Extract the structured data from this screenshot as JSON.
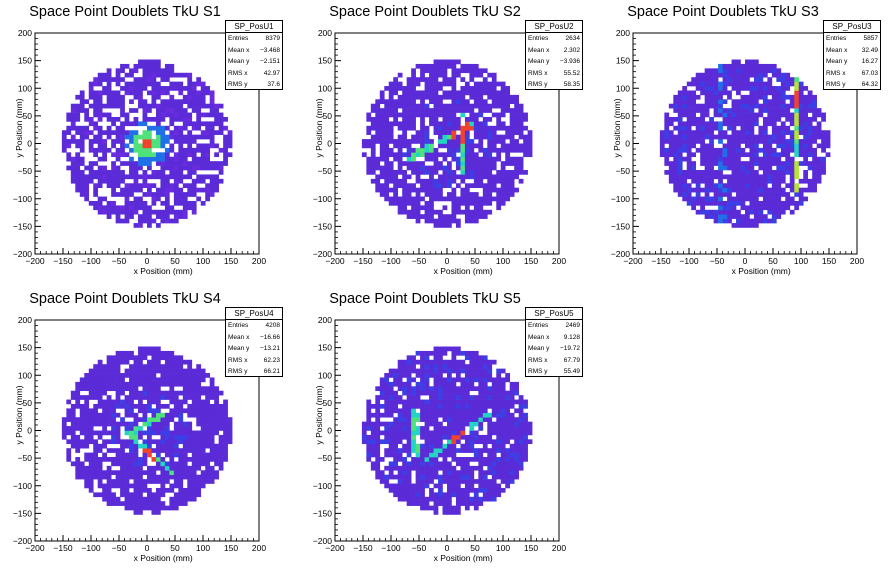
{
  "chart_data": [
    {
      "type": "heatmap",
      "title": "Space Point Doublets TkU S1",
      "xlabel": "x Position (mm)",
      "ylabel": "y Position (mm)",
      "xlim": [
        -200,
        200
      ],
      "ylim": [
        -200,
        200
      ],
      "x_ticks": [
        "−200",
        "−150",
        "−100",
        "−50",
        "0",
        "50",
        "100",
        "150",
        "200"
      ],
      "y_ticks": [
        "−200",
        "−150",
        "−100",
        "−50",
        "0",
        "50",
        "100",
        "150",
        "200"
      ],
      "stats": {
        "name": "SP_PosU1",
        "rows": [
          {
            "label": "Entries",
            "value": "8379"
          },
          {
            "label": "Mean x",
            "value": "−3.468"
          },
          {
            "label": "Mean y",
            "value": "−2.151"
          },
          {
            "label": "RMS x",
            "value": "42.97"
          },
          {
            "label": "RMS y",
            "value": "37.6"
          }
        ]
      },
      "features": {
        "spread": 0.7,
        "shape": "blob",
        "hotspot": [
          0,
          0
        ]
      }
    },
    {
      "type": "heatmap",
      "title": "Space Point Doublets TkU S2",
      "xlabel": "x Position (mm)",
      "ylabel": "y Position (mm)",
      "xlim": [
        -200,
        200
      ],
      "ylim": [
        -200,
        200
      ],
      "x_ticks": [
        "−200",
        "−150",
        "−100",
        "−50",
        "0",
        "50",
        "100",
        "150",
        "200"
      ],
      "y_ticks": [
        "−200",
        "−150",
        "−100",
        "−50",
        "0",
        "50",
        "100",
        "150",
        "200"
      ],
      "stats": {
        "name": "SP_PosU2",
        "rows": [
          {
            "label": "Entries",
            "value": "2634"
          },
          {
            "label": "Mean x",
            "value": "2.302"
          },
          {
            "label": "Mean y",
            "value": "−3.936"
          },
          {
            "label": "RMS x",
            "value": "55.52"
          },
          {
            "label": "RMS y",
            "value": "58.35"
          }
        ]
      },
      "features": {
        "spread": 0.8,
        "shape": "cross",
        "hotspot": [
          30,
          20
        ]
      }
    },
    {
      "type": "heatmap",
      "title": "Space Point Doublets TkU S3",
      "xlabel": "x Position (mm)",
      "ylabel": "y Position (mm)",
      "xlim": [
        -200,
        200
      ],
      "ylim": [
        -200,
        200
      ],
      "x_ticks": [
        "−200",
        "−150",
        "−100",
        "−50",
        "0",
        "50",
        "100",
        "150",
        "200"
      ],
      "y_ticks": [
        "−200",
        "−150",
        "−100",
        "−50",
        "0",
        "50",
        "100",
        "150",
        "200"
      ],
      "stats": {
        "name": "SP_PosU3",
        "rows": [
          {
            "label": "Entries",
            "value": "5857"
          },
          {
            "label": "Mean x",
            "value": "32.49"
          },
          {
            "label": "Mean y",
            "value": "16.27"
          },
          {
            "label": "RMS x",
            "value": "67.03"
          },
          {
            "label": "RMS y",
            "value": "64.32"
          }
        ]
      },
      "features": {
        "spread": 0.85,
        "shape": "vline",
        "hotspot": [
          90,
          80
        ]
      }
    },
    {
      "type": "heatmap",
      "title": "Space Point Doublets TkU S4",
      "xlabel": "x Position (mm)",
      "ylabel": "y Position (mm)",
      "xlim": [
        -200,
        200
      ],
      "ylim": [
        -200,
        200
      ],
      "x_ticks": [
        "−200",
        "−150",
        "−100",
        "−50",
        "0",
        "50",
        "100",
        "150",
        "200"
      ],
      "y_ticks": [
        "−200",
        "−150",
        "−100",
        "−50",
        "0",
        "50",
        "100",
        "150",
        "200"
      ],
      "stats": {
        "name": "SP_PosU4",
        "rows": [
          {
            "label": "Entries",
            "value": "4208"
          },
          {
            "label": "Mean x",
            "value": "−16.66"
          },
          {
            "label": "Mean y",
            "value": "−13.21"
          },
          {
            "label": "RMS x",
            "value": "62.23"
          },
          {
            "label": "RMS y",
            "value": "66.21"
          }
        ]
      },
      "features": {
        "spread": 0.85,
        "shape": "diag",
        "hotspot": [
          5,
          -45
        ]
      }
    },
    {
      "type": "heatmap",
      "title": "Space Point Doublets TkU S5",
      "xlabel": "x Position (mm)",
      "ylabel": "y Position (mm)",
      "xlim": [
        -200,
        200
      ],
      "ylim": [
        -200,
        200
      ],
      "x_ticks": [
        "−200",
        "−150",
        "−100",
        "−50",
        "0",
        "50",
        "100",
        "150",
        "200"
      ],
      "y_ticks": [
        "−200",
        "−150",
        "−100",
        "−50",
        "0",
        "50",
        "100",
        "150",
        "200"
      ],
      "stats": {
        "name": "SP_PosU5",
        "rows": [
          {
            "label": "Entries",
            "value": "2469"
          },
          {
            "label": "Mean x",
            "value": "9.128"
          },
          {
            "label": "Mean y",
            "value": "−19.72"
          },
          {
            "label": "RMS x",
            "value": "67.79"
          },
          {
            "label": "RMS y",
            "value": "55.49"
          }
        ]
      },
      "features": {
        "spread": 0.85,
        "shape": "band",
        "hotspot": [
          20,
          -10
        ]
      }
    }
  ],
  "palette": [
    "#5a2bd6",
    "#6a2be0",
    "#3b3fe6",
    "#1f6fe8",
    "#1aa6e0",
    "#22d4c4",
    "#4fe27a",
    "#b6e23a",
    "#f2c227",
    "#f0432d"
  ]
}
